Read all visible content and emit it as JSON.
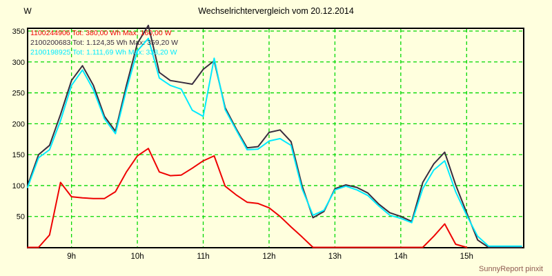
{
  "window": {
    "title": "Wechselrichtervergleich vom 20.12.2014",
    "footer": "SunnyReport pinxit"
  },
  "colors": {
    "background": "#ffffde",
    "grid": "#00d800",
    "plot_border": "#000000",
    "tick_text": "#000000",
    "footer_text": "#8f5a50"
  },
  "chart_data": {
    "type": "line",
    "title": "Wechselrichtervergleich vom 20.12.2014",
    "xlabel": "",
    "ylabel": "W",
    "grid": true,
    "legend_position": "top-left",
    "ylim": [
      0,
      362
    ],
    "y_ticks": [
      350,
      300,
      250,
      200,
      150,
      100,
      50
    ],
    "x_ticks": [
      {
        "hour": 9,
        "label": "9h"
      },
      {
        "hour": 10,
        "label": "10h"
      },
      {
        "hour": 11,
        "label": "11h"
      },
      {
        "hour": 12,
        "label": "12h"
      },
      {
        "hour": 13,
        "label": "13h"
      },
      {
        "hour": 14,
        "label": "14h"
      },
      {
        "hour": 15,
        "label": "15h"
      }
    ],
    "xlim_hours": [
      8.3333,
      15.8667
    ],
    "times": [
      "08:20",
      "08:30",
      "08:40",
      "08:50",
      "09:00",
      "09:10",
      "09:20",
      "09:30",
      "09:40",
      "09:50",
      "10:00",
      "10:10",
      "10:20",
      "10:30",
      "10:40",
      "10:50",
      "11:00",
      "11:10",
      "11:20",
      "11:30",
      "11:40",
      "11:50",
      "12:00",
      "12:10",
      "12:20",
      "12:30",
      "12:40",
      "12:50",
      "13:00",
      "13:10",
      "13:20",
      "13:30",
      "13:40",
      "13:50",
      "14:00",
      "14:10",
      "14:20",
      "14:30",
      "14:40",
      "14:50",
      "15:00",
      "15:10",
      "15:20",
      "15:30",
      "15:40",
      "15:50"
    ],
    "series": [
      {
        "id": "1100244906",
        "legend_text": "1100244906 Tot: 380,00 Wh Max: 160,00 W",
        "total_wh": "380,00",
        "max_w": "160,00",
        "color": "#ee0000",
        "values": [
          0,
          0,
          20,
          105,
          82,
          80,
          79,
          79,
          90,
          122,
          148,
          160,
          122,
          116,
          117,
          128,
          140,
          148,
          99,
          85,
          73,
          71,
          64,
          50,
          33,
          17,
          0,
          0,
          0,
          0,
          0,
          0,
          0,
          0,
          0,
          0,
          0,
          18,
          38,
          5,
          0,
          null,
          null,
          null,
          null,
          null
        ]
      },
      {
        "id": "2100200683",
        "legend_text": "2100200683 Tot: 1.124,35 Wh Max: 359,20 W",
        "total_wh": "1.124,35",
        "max_w": "359,20",
        "color": "#382c3e",
        "values": [
          100,
          150,
          165,
          215,
          270,
          294,
          262,
          212,
          188,
          262,
          330,
          359.2,
          283,
          270,
          267,
          264,
          288,
          302,
          226,
          192,
          161,
          163,
          186,
          190,
          171,
          100,
          48,
          58,
          95,
          101,
          97,
          88,
          70,
          56,
          50,
          42,
          105,
          135,
          154,
          101,
          56,
          12,
          0,
          0,
          0,
          0
        ]
      },
      {
        "id": "2100198925",
        "legend_text": "2100198925 Tot: 1.111,69 Wh Max: 338,20 W",
        "total_wh": "1.111,69",
        "max_w": "338,20",
        "color": "#00eaff",
        "values": [
          97,
          145,
          158,
          205,
          262,
          287,
          255,
          208,
          184,
          255,
          318,
          338.2,
          274,
          262,
          256,
          222,
          212,
          306,
          223,
          190,
          158,
          159,
          172,
          176,
          165,
          95,
          52,
          60,
          93,
          99,
          93,
          84,
          67,
          52,
          47,
          40,
          95,
          125,
          140,
          90,
          52,
          18,
          2,
          2,
          2,
          2
        ]
      }
    ]
  }
}
